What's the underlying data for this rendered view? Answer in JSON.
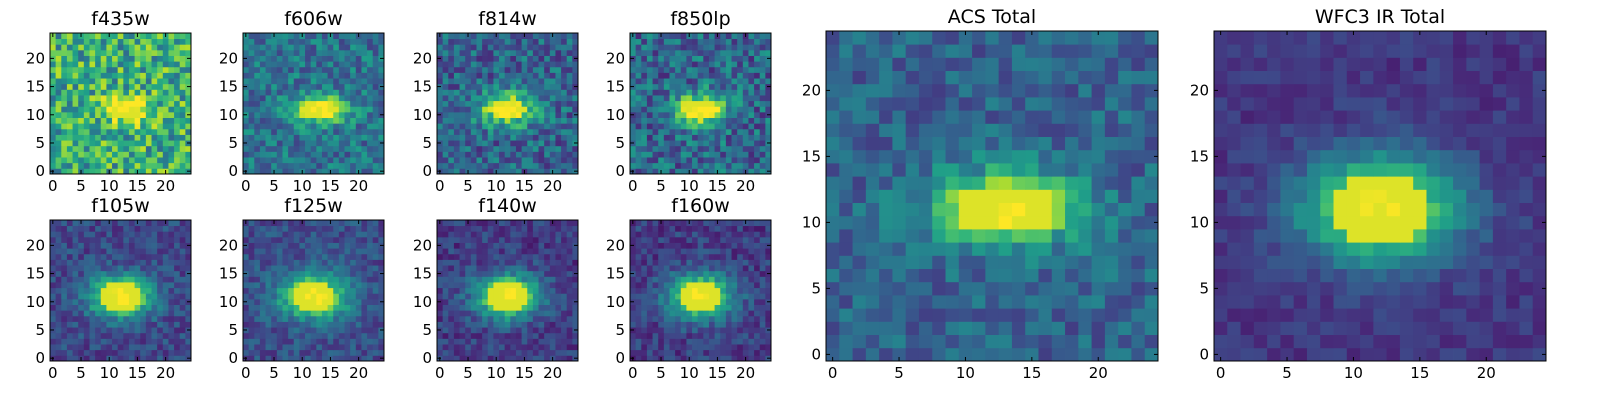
{
  "figure": {
    "colormap": "viridis",
    "colormap_stops": [
      "#440154",
      "#482878",
      "#3e4989",
      "#31688e",
      "#26828e",
      "#1f9e89",
      "#35b779",
      "#6ece58",
      "#b5de2b",
      "#fde725"
    ]
  },
  "chart_data": [
    {
      "type": "heatmap",
      "title": "f435w",
      "grid": false,
      "xlim": [
        0,
        24
      ],
      "ylim": [
        0,
        24
      ],
      "xticks": [
        "0",
        "5",
        "10",
        "15",
        "20"
      ],
      "yticks": [
        "0",
        "5",
        "10",
        "15",
        "20"
      ],
      "center": [
        13,
        11
      ],
      "sigma": [
        3.0,
        1.8
      ],
      "peak": 0.45,
      "background": 0.62,
      "noise": 0.28
    },
    {
      "type": "heatmap",
      "title": "f606w",
      "grid": false,
      "xlim": [
        0,
        24
      ],
      "ylim": [
        0,
        24
      ],
      "xticks": [
        "0",
        "5",
        "10",
        "15",
        "20"
      ],
      "yticks": [
        "0",
        "5",
        "10",
        "15",
        "20"
      ],
      "center": [
        13,
        11
      ],
      "sigma": [
        3.5,
        1.8
      ],
      "peak": 0.65,
      "background": 0.38,
      "noise": 0.18
    },
    {
      "type": "heatmap",
      "title": "f814w",
      "grid": false,
      "xlim": [
        0,
        24
      ],
      "ylim": [
        0,
        24
      ],
      "xticks": [
        "0",
        "5",
        "10",
        "15",
        "20"
      ],
      "yticks": [
        "0",
        "5",
        "10",
        "15",
        "20"
      ],
      "center": [
        12,
        11
      ],
      "sigma": [
        3.5,
        2.0
      ],
      "peak": 0.7,
      "background": 0.32,
      "noise": 0.2
    },
    {
      "type": "heatmap",
      "title": "f850lp",
      "grid": false,
      "xlim": [
        0,
        24
      ],
      "ylim": [
        0,
        24
      ],
      "xticks": [
        "0",
        "5",
        "10",
        "15",
        "20"
      ],
      "yticks": [
        "0",
        "5",
        "10",
        "15",
        "20"
      ],
      "center": [
        12,
        11
      ],
      "sigma": [
        3.3,
        2.0
      ],
      "peak": 0.72,
      "background": 0.33,
      "noise": 0.22
    },
    {
      "type": "heatmap",
      "title": "f105w",
      "grid": false,
      "xlim": [
        0,
        24
      ],
      "ylim": [
        0,
        24
      ],
      "xticks": [
        "0",
        "5",
        "10",
        "15",
        "20"
      ],
      "yticks": [
        "0",
        "5",
        "10",
        "15",
        "20"
      ],
      "center": [
        12,
        11
      ],
      "sigma": [
        4.0,
        2.6
      ],
      "peak": 0.78,
      "background": 0.22,
      "noise": 0.12
    },
    {
      "type": "heatmap",
      "title": "f125w",
      "grid": false,
      "xlim": [
        0,
        24
      ],
      "ylim": [
        0,
        24
      ],
      "xticks": [
        "0",
        "5",
        "10",
        "15",
        "20"
      ],
      "yticks": [
        "0",
        "5",
        "10",
        "15",
        "20"
      ],
      "center": [
        12,
        11
      ],
      "sigma": [
        4.2,
        2.8
      ],
      "peak": 0.78,
      "background": 0.24,
      "noise": 0.12
    },
    {
      "type": "heatmap",
      "title": "f140w",
      "grid": false,
      "xlim": [
        0,
        24
      ],
      "ylim": [
        0,
        24
      ],
      "xticks": [
        "0",
        "5",
        "10",
        "15",
        "20"
      ],
      "yticks": [
        "0",
        "5",
        "10",
        "15",
        "20"
      ],
      "center": [
        12,
        11
      ],
      "sigma": [
        4.0,
        2.8
      ],
      "peak": 0.8,
      "background": 0.18,
      "noise": 0.12
    },
    {
      "type": "heatmap",
      "title": "f160w",
      "grid": false,
      "xlim": [
        0,
        24
      ],
      "ylim": [
        0,
        24
      ],
      "xticks": [
        "0",
        "5",
        "10",
        "15",
        "20"
      ],
      "yticks": [
        "0",
        "5",
        "10",
        "15",
        "20"
      ],
      "center": [
        12,
        11
      ],
      "sigma": [
        4.0,
        2.8
      ],
      "peak": 0.8,
      "background": 0.18,
      "noise": 0.12
    },
    {
      "type": "heatmap",
      "title": "ACS Total",
      "grid": false,
      "xlim": [
        0,
        24
      ],
      "ylim": [
        0,
        24
      ],
      "xticks": [
        "0",
        "5",
        "10",
        "15",
        "20"
      ],
      "yticks": [
        "0",
        "5",
        "10",
        "15",
        "20"
      ],
      "center": [
        13,
        11
      ],
      "sigma": [
        4.0,
        2.0
      ],
      "peak": 0.7,
      "background": 0.32,
      "noise": 0.14
    },
    {
      "type": "heatmap",
      "title": "WFC3 IR Total",
      "grid": false,
      "xlim": [
        0,
        24
      ],
      "ylim": [
        0,
        24
      ],
      "xticks": [
        "0",
        "5",
        "10",
        "15",
        "20"
      ],
      "yticks": [
        "0",
        "5",
        "10",
        "15",
        "20"
      ],
      "center": [
        12,
        11
      ],
      "sigma": [
        4.2,
        2.8
      ],
      "peak": 0.82,
      "background": 0.16,
      "noise": 0.07
    }
  ]
}
